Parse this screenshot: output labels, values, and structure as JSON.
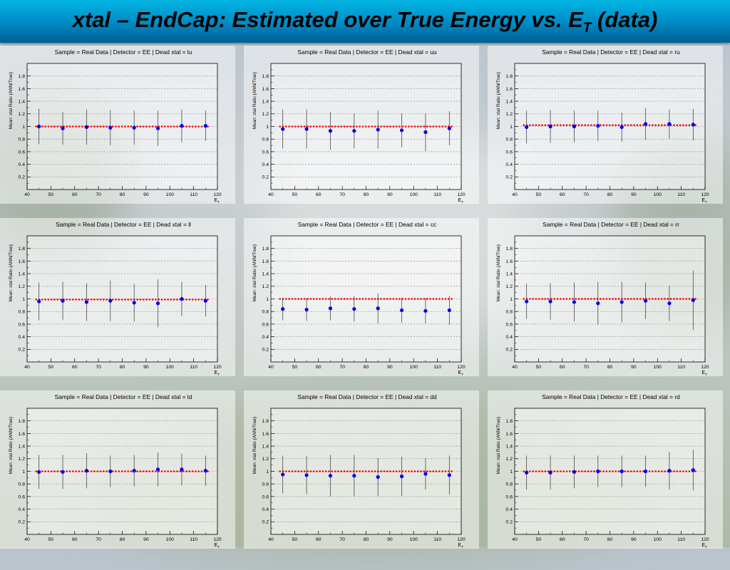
{
  "header": {
    "title_main": "xtal – EndCap: Estimated over True Energy vs. E",
    "title_sub": "T",
    "title_tail": " (data)"
  },
  "colors": {
    "header_top": "#02b6e4",
    "header_bottom": "#005f96",
    "marker": "#0000ee",
    "reference_line": "#ff0000",
    "error_bar": "#333333"
  },
  "chart_data": [
    {
      "type": "scatter",
      "title": "Sample = Real Data | Detector = EE | Dead xtal = lu",
      "xlabel": "E",
      "xlabel_sub": "T",
      "ylabel": "Mean: xtal Ratio (ANN/True)",
      "xlim": [
        40,
        120
      ],
      "ylim": [
        0,
        2
      ],
      "x_ticks": [
        40,
        50,
        60,
        70,
        80,
        90,
        100,
        110,
        120
      ],
      "y_ticks": [
        0.2,
        0.4,
        0.6,
        0.8,
        1,
        1.2,
        1.4,
        1.6,
        1.8
      ],
      "grid": true,
      "reference_line": 1,
      "x": [
        45,
        55,
        65,
        75,
        85,
        95,
        105,
        115
      ],
      "y": [
        1.0,
        0.97,
        0.99,
        0.98,
        0.98,
        0.97,
        1.01,
        1.01
      ],
      "err": [
        0.28,
        0.26,
        0.28,
        0.28,
        0.27,
        0.28,
        0.26,
        0.24
      ]
    },
    {
      "type": "scatter",
      "title": "Sample = Real Data | Detector = EE | Dead xtal = uu",
      "xlabel": "E",
      "xlabel_sub": "T",
      "ylabel": "Mean: xtal Ratio (ANN/True)",
      "xlim": [
        40,
        120
      ],
      "ylim": [
        0,
        2
      ],
      "x_ticks": [
        40,
        50,
        60,
        70,
        80,
        90,
        100,
        110,
        120
      ],
      "y_ticks": [
        0.2,
        0.4,
        0.6,
        0.8,
        1,
        1.2,
        1.4,
        1.6,
        1.8
      ],
      "grid": true,
      "reference_line": 1,
      "x": [
        45,
        55,
        65,
        75,
        85,
        95,
        105,
        115
      ],
      "y": [
        0.96,
        0.96,
        0.93,
        0.93,
        0.95,
        0.94,
        0.91,
        0.97
      ],
      "err": [
        0.31,
        0.31,
        0.3,
        0.28,
        0.3,
        0.27,
        0.3,
        0.27
      ]
    },
    {
      "type": "scatter",
      "title": "Sample = Real Data | Detector = EE | Dead xtal = ru",
      "xlabel": "E",
      "xlabel_sub": "T",
      "ylabel": "Mean: xtal Ratio (ANN/True)",
      "xlim": [
        40,
        120
      ],
      "ylim": [
        0,
        2
      ],
      "x_ticks": [
        40,
        50,
        60,
        70,
        80,
        90,
        100,
        110,
        120
      ],
      "y_ticks": [
        0.2,
        0.4,
        0.6,
        0.8,
        1,
        1.2,
        1.4,
        1.6,
        1.8
      ],
      "grid": true,
      "reference_line": 1.02,
      "x": [
        45,
        55,
        65,
        75,
        85,
        95,
        105,
        115
      ],
      "y": [
        0.99,
        1.0,
        1.0,
        1.01,
        0.99,
        1.04,
        1.04,
        1.03
      ],
      "err": [
        0.26,
        0.26,
        0.25,
        0.24,
        0.23,
        0.25,
        0.23,
        0.25
      ]
    },
    {
      "type": "scatter",
      "title": "Sample = Real Data | Detector = EE | Dead xtal = ll",
      "xlabel": "E",
      "xlabel_sub": "T",
      "ylabel": "Mean: xtal Ratio (ANN/True)",
      "xlim": [
        40,
        120
      ],
      "ylim": [
        0,
        2
      ],
      "x_ticks": [
        40,
        50,
        60,
        70,
        80,
        90,
        100,
        110,
        120
      ],
      "y_ticks": [
        0.2,
        0.4,
        0.6,
        0.8,
        1,
        1.2,
        1.4,
        1.6,
        1.8
      ],
      "grid": true,
      "reference_line": 0.99,
      "x": [
        45,
        55,
        65,
        75,
        85,
        95,
        105,
        115
      ],
      "y": [
        0.96,
        0.97,
        0.95,
        0.97,
        0.94,
        0.93,
        1.0,
        0.97
      ],
      "err": [
        0.3,
        0.3,
        0.3,
        0.32,
        0.3,
        0.38,
        0.27,
        0.25
      ]
    },
    {
      "type": "scatter",
      "title": "Sample = Real Data | Detector = EE | Dead xtal = cc",
      "xlabel": "E",
      "xlabel_sub": "T",
      "ylabel": "Mean: xtal Ratio (ANN/True)",
      "xlim": [
        40,
        120
      ],
      "ylim": [
        0,
        2
      ],
      "x_ticks": [
        40,
        50,
        60,
        70,
        80,
        90,
        100,
        110,
        120
      ],
      "y_ticks": [
        0.2,
        0.4,
        0.6,
        0.8,
        1,
        1.2,
        1.4,
        1.6,
        1.8
      ],
      "grid": true,
      "reference_line": 1,
      "x": [
        45,
        55,
        65,
        75,
        85,
        95,
        105,
        115
      ],
      "y": [
        0.84,
        0.83,
        0.85,
        0.84,
        0.85,
        0.82,
        0.81,
        0.82
      ],
      "err": [
        0.18,
        0.18,
        0.19,
        0.2,
        0.24,
        0.2,
        0.2,
        0.23
      ]
    },
    {
      "type": "scatter",
      "title": "Sample = Real Data | Detector = EE | Dead xtal = rr",
      "xlabel": "E",
      "xlabel_sub": "T",
      "ylabel": "Mean: xtal Ratio (ANN/True)",
      "xlim": [
        40,
        120
      ],
      "ylim": [
        0,
        2
      ],
      "x_ticks": [
        40,
        50,
        60,
        70,
        80,
        90,
        100,
        110,
        120
      ],
      "y_ticks": [
        0.2,
        0.4,
        0.6,
        0.8,
        1,
        1.2,
        1.4,
        1.6,
        1.8
      ],
      "grid": true,
      "reference_line": 1,
      "x": [
        45,
        55,
        65,
        75,
        85,
        95,
        105,
        115
      ],
      "y": [
        0.96,
        0.96,
        0.95,
        0.93,
        0.95,
        0.97,
        0.93,
        0.98
      ],
      "err": [
        0.28,
        0.29,
        0.31,
        0.34,
        0.32,
        0.29,
        0.28,
        0.47
      ]
    },
    {
      "type": "scatter",
      "title": "Sample = Real Data | Detector = EE | Dead xtal = ld",
      "xlabel": "E",
      "xlabel_sub": "T",
      "ylabel": "Mean: xtal Ratio (ANN/True)",
      "xlim": [
        40,
        120
      ],
      "ylim": [
        0,
        2
      ],
      "x_ticks": [
        40,
        50,
        60,
        70,
        80,
        90,
        100,
        110,
        120
      ],
      "y_ticks": [
        0.2,
        0.4,
        0.6,
        0.8,
        1,
        1.2,
        1.4,
        1.6,
        1.8
      ],
      "grid": true,
      "reference_line": 1,
      "x": [
        45,
        55,
        65,
        75,
        85,
        95,
        105,
        115
      ],
      "y": [
        0.99,
        0.99,
        1.01,
        1.0,
        1.01,
        1.03,
        1.03,
        1.01
      ],
      "err": [
        0.27,
        0.27,
        0.28,
        0.25,
        0.25,
        0.27,
        0.25,
        0.24
      ]
    },
    {
      "type": "scatter",
      "title": "Sample = Real Data | Detector = EE | Dead xtal = dd",
      "xlabel": "E",
      "xlabel_sub": "T",
      "ylabel": "Mean: xtal Ratio (ANN/True)",
      "xlim": [
        40,
        120
      ],
      "ylim": [
        0,
        2
      ],
      "x_ticks": [
        40,
        50,
        60,
        70,
        80,
        90,
        100,
        110,
        120
      ],
      "y_ticks": [
        0.2,
        0.4,
        0.6,
        0.8,
        1,
        1.2,
        1.4,
        1.6,
        1.8
      ],
      "grid": true,
      "reference_line": 1,
      "x": [
        45,
        55,
        65,
        75,
        85,
        95,
        105,
        115
      ],
      "y": [
        0.95,
        0.94,
        0.93,
        0.93,
        0.91,
        0.92,
        0.96,
        0.94
      ],
      "err": [
        0.3,
        0.3,
        0.33,
        0.33,
        0.3,
        0.31,
        0.25,
        0.31
      ]
    },
    {
      "type": "scatter",
      "title": "Sample = Real Data | Detector = EE | Dead xtal = rd",
      "xlabel": "E",
      "xlabel_sub": "T",
      "ylabel": "Mean: xtal Ratio (ANN/True)",
      "xlim": [
        40,
        120
      ],
      "ylim": [
        0,
        2
      ],
      "x_ticks": [
        40,
        50,
        60,
        70,
        80,
        90,
        100,
        110,
        120
      ],
      "y_ticks": [
        0.2,
        0.4,
        0.6,
        0.8,
        1,
        1.2,
        1.4,
        1.6,
        1.8
      ],
      "grid": true,
      "reference_line": 1,
      "x": [
        45,
        55,
        65,
        75,
        85,
        95,
        105,
        115
      ],
      "y": [
        0.98,
        0.98,
        0.99,
        1.0,
        1.0,
        1.0,
        1.01,
        1.02
      ],
      "err": [
        0.27,
        0.27,
        0.26,
        0.25,
        0.25,
        0.25,
        0.3,
        0.32
      ]
    }
  ]
}
